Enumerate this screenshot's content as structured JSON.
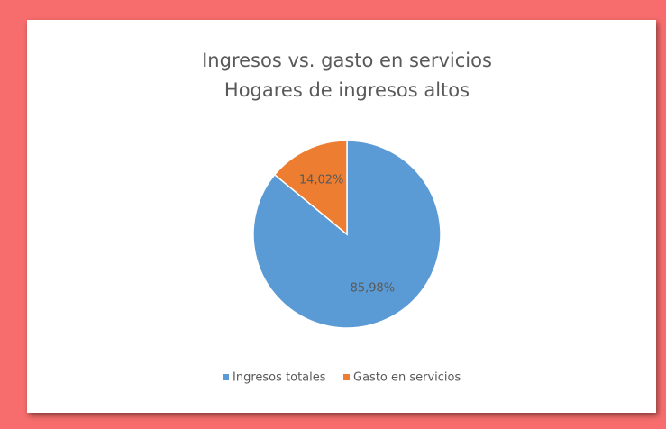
{
  "chart_data": {
    "type": "pie",
    "title": "Ingresos vs. gasto en servicios",
    "subtitle": "Hogares de ingresos altos",
    "categories": [
      "Ingresos totales",
      "Gasto en servicios"
    ],
    "values": [
      85.98,
      14.02
    ],
    "value_labels": [
      "85,98%",
      "14,02%"
    ],
    "colors": [
      "#5b9bd5",
      "#ed7d31"
    ],
    "legend": "bottom"
  }
}
